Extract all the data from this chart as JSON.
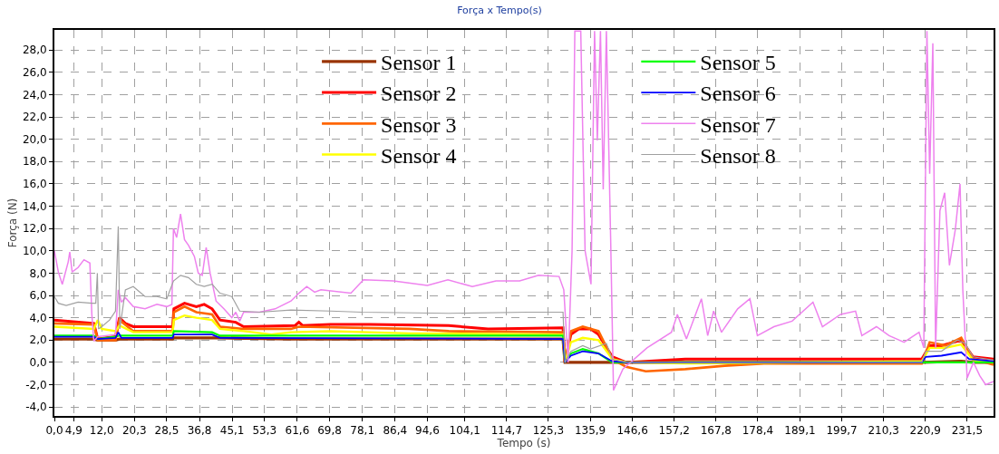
{
  "chart_data": {
    "type": "line",
    "title": "Força x Tempo(s)",
    "xlabel": "Tempo (s)",
    "ylabel": "Força (N)",
    "xlim": [
      0,
      238.2
    ],
    "ylim": [
      -4.8,
      29.8
    ],
    "xticks": [
      {
        "value": 0,
        "label": "0,0"
      },
      {
        "value": 4.9,
        "label": "4,9"
      },
      {
        "value": 12.0,
        "label": "12,0"
      },
      {
        "value": 20.3,
        "label": "20,3"
      },
      {
        "value": 28.5,
        "label": "28,5"
      },
      {
        "value": 36.8,
        "label": "36,8"
      },
      {
        "value": 45.1,
        "label": "45,1"
      },
      {
        "value": 53.3,
        "label": "53,3"
      },
      {
        "value": 61.6,
        "label": "61,6"
      },
      {
        "value": 69.8,
        "label": "69,8"
      },
      {
        "value": 78.1,
        "label": "78,1"
      },
      {
        "value": 86.4,
        "label": "86,4"
      },
      {
        "value": 94.6,
        "label": "94,6"
      },
      {
        "value": 104.1,
        "label": "104,1"
      },
      {
        "value": 114.7,
        "label": "114,7"
      },
      {
        "value": 125.3,
        "label": "125,3"
      },
      {
        "value": 135.9,
        "label": "135,9"
      },
      {
        "value": 146.6,
        "label": "146,6"
      },
      {
        "value": 157.2,
        "label": "157,2"
      },
      {
        "value": 167.8,
        "label": "167,8"
      },
      {
        "value": 178.4,
        "label": "178,4"
      },
      {
        "value": 189.1,
        "label": "189,1"
      },
      {
        "value": 199.7,
        "label": "199,7"
      },
      {
        "value": 210.3,
        "label": "210,3"
      },
      {
        "value": 220.9,
        "label": "220,9"
      },
      {
        "value": 231.5,
        "label": "231,5"
      }
    ],
    "yticks": [
      {
        "value": -4,
        "label": "-4,0"
      },
      {
        "value": -2,
        "label": "-2,0"
      },
      {
        "value": 0,
        "label": "0,0"
      },
      {
        "value": 2,
        "label": "2,0"
      },
      {
        "value": 4,
        "label": "4,0"
      },
      {
        "value": 6,
        "label": "6,0"
      },
      {
        "value": 8,
        "label": "8,0"
      },
      {
        "value": 10,
        "label": "10,0"
      },
      {
        "value": 12,
        "label": "12,0"
      },
      {
        "value": 14,
        "label": "14,0"
      },
      {
        "value": 16,
        "label": "16,0"
      },
      {
        "value": 18,
        "label": "18,0"
      },
      {
        "value": 20,
        "label": "20,0"
      },
      {
        "value": 22,
        "label": "22,0"
      },
      {
        "value": 24,
        "label": "24,0"
      },
      {
        "value": 26,
        "label": "26,0"
      },
      {
        "value": 28,
        "label": "28,0"
      }
    ],
    "grid": true,
    "legend": "top",
    "marker": "none",
    "line_style": "solid",
    "series": [
      {
        "name": "Sensor 1",
        "color": "#993300",
        "x": [
          0,
          10,
          11,
          15.5,
          16.5,
          30,
          30.3,
          42,
          60,
          90,
          129,
          129.5,
          145,
          160,
          200,
          220,
          230,
          233,
          238.2
        ],
        "values": [
          2.1,
          2.1,
          2.0,
          2.0,
          2.1,
          2.1,
          2.2,
          2.2,
          2.1,
          2.1,
          2.1,
          0,
          0,
          0,
          0,
          0,
          0.1,
          0,
          0
        ]
      },
      {
        "name": "Sensor 2",
        "color": "#ff0000",
        "x": [
          0,
          10,
          11,
          15.5,
          16.5,
          18,
          20,
          30,
          30.3,
          33,
          36,
          38,
          40,
          42,
          46,
          48,
          61,
          62,
          63,
          70,
          80,
          100,
          110,
          129,
          129.5,
          131,
          133,
          136,
          138,
          141.5,
          145,
          160,
          200,
          220,
          222,
          225,
          230,
          233,
          238.2
        ],
        "values": [
          3.8,
          3.5,
          2.1,
          2.3,
          4.0,
          3.5,
          3.2,
          3.2,
          4.8,
          5.3,
          5.0,
          5.2,
          4.8,
          3.8,
          3.6,
          3.2,
          3.3,
          3.6,
          3.3,
          3.4,
          3.4,
          3.3,
          3.0,
          3.1,
          0,
          2.5,
          3.0,
          3.0,
          2.5,
          0.5,
          0.0,
          0.3,
          0.3,
          0.3,
          1.5,
          1.5,
          2.0,
          0.5,
          0.3
        ]
      },
      {
        "name": "Sensor 3",
        "color": "#ff6600",
        "x": [
          0,
          10,
          11,
          15.5,
          16.5,
          20,
          30,
          30.3,
          33,
          36,
          40,
          42,
          48,
          60,
          62,
          90,
          100,
          129,
          129.5,
          131,
          134,
          138,
          141.5,
          145,
          150,
          160,
          170,
          180,
          220,
          222,
          226,
          230,
          233,
          238.2
        ],
        "values": [
          3.5,
          3.4,
          2.0,
          2.0,
          3.8,
          2.8,
          2.8,
          4.5,
          5.0,
          4.5,
          4.3,
          3.2,
          3.0,
          3.0,
          3.2,
          3.0,
          2.8,
          2.7,
          0,
          2.8,
          3.2,
          2.8,
          0.3,
          -0.4,
          -0.8,
          -0.6,
          -0.3,
          -0.1,
          -0.1,
          1.8,
          1.5,
          2.2,
          0.3,
          -0.2
        ]
      },
      {
        "name": "Sensor 4",
        "color": "#ffff00",
        "x": [
          0,
          10,
          11,
          12,
          15.5,
          16.5,
          20,
          30,
          30.3,
          33,
          36,
          40,
          42,
          48,
          55,
          60,
          70,
          90,
          129,
          129.5,
          131,
          134,
          138,
          141.5,
          145,
          160,
          220,
          222,
          226,
          230,
          233,
          238.2
        ],
        "values": [
          3.2,
          3.0,
          3.8,
          3.0,
          2.8,
          3.3,
          2.7,
          2.7,
          3.8,
          4.2,
          4.0,
          3.8,
          3.0,
          2.8,
          2.5,
          2.7,
          2.8,
          2.6,
          2.5,
          0,
          1.8,
          2.2,
          2.0,
          0.3,
          0,
          -0.1,
          0.1,
          1.3,
          1.3,
          1.6,
          0.2,
          0
        ]
      },
      {
        "name": "Sensor 5",
        "color": "#00ff00",
        "x": [
          0,
          10,
          11,
          15.5,
          16.5,
          30,
          30.3,
          40,
          42,
          129,
          129.5,
          131,
          134,
          138,
          141.5,
          220,
          238.2
        ],
        "values": [
          2.4,
          2.4,
          2.1,
          2.3,
          2.4,
          2.4,
          2.8,
          2.7,
          2.4,
          2.4,
          0,
          0.8,
          1.2,
          0.8,
          0,
          0,
          0
        ]
      },
      {
        "name": "Sensor 6",
        "color": "#0000ff",
        "x": [
          0,
          10,
          11,
          15.5,
          16.2,
          17,
          30,
          30.3,
          40,
          42,
          129,
          129.5,
          131,
          134,
          138,
          141.5,
          145,
          220,
          221,
          225,
          230,
          232,
          238.2
        ],
        "values": [
          2.3,
          2.3,
          2.1,
          2.2,
          2.7,
          2.2,
          2.2,
          2.5,
          2.5,
          2.2,
          2.1,
          0,
          0.6,
          1.0,
          0.8,
          0.1,
          0,
          0,
          0.5,
          0.6,
          0.9,
          0.3,
          0.1
        ]
      },
      {
        "name": "Sensor 7",
        "color": "#ee82ee",
        "x": [
          0,
          1,
          2,
          3.5,
          3.9,
          4.5,
          6,
          7.5,
          9,
          9.5,
          10,
          11,
          15.5,
          16.2,
          17,
          18,
          20,
          23,
          26,
          28.5,
          29.8,
          30.2,
          31,
          32,
          33,
          34,
          35.5,
          36.5,
          37.5,
          38.5,
          39.5,
          41,
          43,
          45,
          46,
          47,
          48,
          52,
          56,
          60,
          62,
          64,
          66,
          67.6,
          75.2,
          78.4,
          86,
          94.6,
          99.8,
          106,
          112,
          118,
          122.8,
          128,
          129.2,
          130.3,
          131.3,
          132,
          133.5,
          134.6,
          136.1,
          137,
          137.7,
          138.5,
          139.2,
          140,
          141.1,
          141.8,
          144.2,
          150.3,
          156.5,
          158,
          160.3,
          164.1,
          165.7,
          167.2,
          169.2,
          173.3,
          176.4,
          178.3,
          182.5,
          187.1,
          192.4,
          194.8,
          199.4,
          203.2,
          204.8,
          208.5,
          211.7,
          215.5,
          219.3,
          220.5,
          221.3,
          222,
          222.8,
          223.5,
          224.6,
          225.8,
          227,
          228.5,
          229.7,
          230.4,
          231.5,
          233.1,
          234.7,
          236.2,
          238.2
        ],
        "values": [
          10.0,
          8.1,
          7.0,
          9.0,
          9.9,
          8.1,
          8.5,
          9.2,
          8.9,
          4.3,
          1.9,
          2.3,
          2.5,
          6.5,
          5.4,
          5.8,
          5.0,
          4.8,
          5.2,
          5.0,
          5.2,
          12.0,
          11.2,
          13.3,
          11.0,
          10.5,
          9.5,
          8.0,
          7.8,
          10.3,
          8.0,
          5.5,
          4.8,
          4.0,
          4.5,
          3.7,
          4.5,
          4.5,
          4.8,
          5.5,
          6.2,
          6.8,
          6.3,
          6.5,
          6.2,
          7.4,
          7.3,
          6.9,
          7.4,
          6.8,
          7.3,
          7.3,
          7.8,
          7.7,
          6.5,
          0,
          10.0,
          29.7,
          29.7,
          10.0,
          7.0,
          29.7,
          19.9,
          29.7,
          15.5,
          29.7,
          10.8,
          -2.5,
          -0.6,
          1.3,
          2.7,
          4.3,
          2.1,
          5.7,
          2.4,
          4.6,
          2.7,
          4.8,
          5.7,
          2.4,
          3.2,
          3.7,
          5.4,
          3.2,
          4.3,
          4.6,
          2.4,
          3.2,
          2.4,
          1.8,
          2.7,
          1.3,
          29.7,
          16.9,
          28.6,
          1.3,
          13.6,
          15.2,
          8.7,
          11.9,
          16.0,
          6.5,
          -1.4,
          0,
          -1.2,
          -2.0,
          -1.7
        ]
      },
      {
        "name": "Sensor 8",
        "color": "#a0a0a0",
        "x": [
          0,
          1,
          3,
          6,
          9.5,
          10.5,
          10.9,
          11.2,
          12,
          14,
          15.5,
          16.2,
          16.6,
          18,
          20,
          23,
          26,
          28.5,
          30.2,
          32,
          34,
          36,
          38,
          40,
          42,
          45,
          47,
          52,
          60,
          70,
          78,
          100,
          120,
          129,
          129.5,
          131,
          134,
          136,
          140,
          141.5,
          145,
          220,
          221,
          225,
          229,
          231,
          233,
          238.2
        ],
        "values": [
          5.9,
          5.3,
          5.1,
          5.4,
          5.3,
          5.3,
          8.0,
          3.0,
          3.2,
          3.8,
          4.6,
          12.2,
          3.0,
          6.5,
          6.8,
          5.9,
          5.9,
          5.7,
          7.3,
          7.8,
          7.6,
          7.0,
          6.8,
          7.0,
          6.2,
          5.9,
          4.6,
          4.5,
          4.7,
          4.6,
          4.5,
          4.4,
          4.5,
          4.5,
          0,
          1.0,
          1.5,
          1.2,
          1.7,
          0.3,
          0,
          0,
          1.0,
          1.0,
          2.0,
          1.7,
          0.5,
          0.2
        ]
      }
    ]
  }
}
